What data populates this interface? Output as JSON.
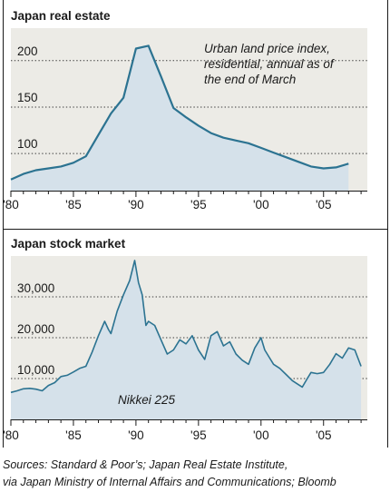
{
  "chart_data": [
    {
      "type": "area",
      "title": "Japan real estate",
      "annotation": [
        "Urban land price index,",
        "residential, annual as of",
        "the end of March"
      ],
      "x_ticks": [
        "'80",
        "'85",
        "'90",
        "'95",
        "'00",
        "'05"
      ],
      "y_ticks": [
        "100",
        "150",
        "200"
      ],
      "xlim": [
        1980,
        2008.5
      ],
      "ylim": [
        60,
        235
      ],
      "grid": "dotted horizontal",
      "colors": {
        "fill": "#d5e1ea",
        "line": "#2c7391",
        "panel": "#ecebe6"
      },
      "x": [
        1980,
        1981,
        1982,
        1983,
        1984,
        1985,
        1986,
        1987,
        1988,
        1989,
        1990,
        1991,
        1992,
        1993,
        1994,
        1995,
        1996,
        1997,
        1998,
        1999,
        2000,
        2001,
        2002,
        2003,
        2004,
        2005,
        2006,
        2007
      ],
      "values": [
        72,
        78,
        82,
        84,
        86,
        90,
        97,
        120,
        143,
        160,
        213,
        216,
        183,
        149,
        139,
        130,
        122,
        117,
        114,
        111,
        106,
        101,
        96,
        91,
        86,
        84,
        85,
        89
      ]
    },
    {
      "type": "area",
      "title": "Japan stock market",
      "series_label": "Nikkei 225",
      "x_ticks": [
        "'80",
        "'85",
        "'90",
        "'95",
        "'00",
        "'05"
      ],
      "y_ticks": [
        "10,000",
        "20,000",
        "30,000"
      ],
      "xlim": [
        1980,
        2008.5
      ],
      "ylim": [
        0,
        40000
      ],
      "grid": "dotted horizontal",
      "colors": {
        "fill": "#d5e1ea",
        "line": "#2c7391",
        "panel": "#ecebe6"
      },
      "x": [
        1980.0,
        1980.5,
        1981.0,
        1981.5,
        1982.0,
        1982.5,
        1983.0,
        1983.5,
        1984.0,
        1984.5,
        1985.0,
        1985.5,
        1986.0,
        1986.5,
        1987.0,
        1987.5,
        1987.8,
        1988.0,
        1988.5,
        1989.0,
        1989.5,
        1989.9,
        1990.2,
        1990.5,
        1990.8,
        1991.0,
        1991.5,
        1992.0,
        1992.5,
        1993.0,
        1993.5,
        1994.0,
        1994.5,
        1995.0,
        1995.5,
        1996.0,
        1996.5,
        1997.0,
        1997.5,
        1998.0,
        1998.5,
        1999.0,
        1999.5,
        2000.0,
        2000.3,
        2000.7,
        2001.0,
        2001.5,
        2002.0,
        2002.5,
        2003.0,
        2003.3,
        2003.7,
        2004.0,
        2004.5,
        2005.0,
        2005.5,
        2006.0,
        2006.5,
        2007.0,
        2007.5,
        2008.0
      ],
      "values": [
        6600,
        7000,
        7500,
        7600,
        7400,
        7000,
        8300,
        9000,
        10500,
        10800,
        11600,
        12500,
        13000,
        16500,
        20500,
        24000,
        22000,
        21000,
        26500,
        30500,
        34000,
        38900,
        33500,
        30500,
        23000,
        24000,
        23000,
        19500,
        16000,
        17000,
        19500,
        18500,
        20500,
        17000,
        14700,
        20500,
        21500,
        18000,
        19000,
        16000,
        14500,
        13500,
        17500,
        20000,
        17000,
        15000,
        13500,
        12500,
        11000,
        9500,
        8500,
        7900,
        10000,
        11500,
        11200,
        11500,
        13500,
        16100,
        15000,
        17500,
        17000,
        13000
      ]
    }
  ],
  "sources": [
    "Sources: Standard & Poor’s; Japan Real Estate Institute,",
    "via Japan Ministry of Internal Affairs and Communications; Bloomb"
  ]
}
